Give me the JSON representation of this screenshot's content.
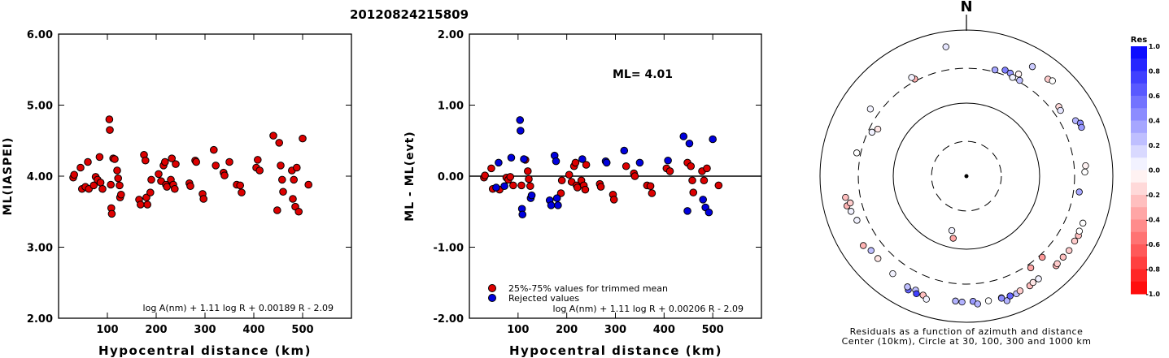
{
  "figure": {
    "title": "20120824215809"
  },
  "chart_data": [
    {
      "type": "scatter",
      "xlabel": "Hypocentral distance (km)",
      "ylabel": "ML(IASPEI)",
      "xlim": [
        0,
        600
      ],
      "ylim": [
        2.0,
        6.0
      ],
      "xticks": [
        "100",
        "200",
        "300",
        "400",
        "500"
      ],
      "yticks": [
        "2.00",
        "3.00",
        "4.00",
        "5.00",
        "6.00"
      ],
      "formula": "log A(nm) + 1.11 log R + 0.00189 R - 2.09",
      "series": [
        {
          "color": "#dd0000",
          "points": [
            [
              30,
              3.98
            ],
            [
              32,
              4.02
            ],
            [
              45,
              4.12
            ],
            [
              48,
              3.82
            ],
            [
              55,
              3.85
            ],
            [
              60,
              4.2
            ],
            [
              62,
              3.82
            ],
            [
              72,
              3.87
            ],
            [
              76,
              3.99
            ],
            [
              80,
              3.95
            ],
            [
              84,
              4.27
            ],
            [
              86,
              3.91
            ],
            [
              90,
              3.82
            ],
            [
              104,
              4.8
            ],
            [
              105,
              4.65
            ],
            [
              107,
              3.88
            ],
            [
              108,
              3.55
            ],
            [
              109,
              3.47
            ],
            [
              112,
              4.25
            ],
            [
              115,
              4.24
            ],
            [
              120,
              4.08
            ],
            [
              122,
              3.97
            ],
            [
              125,
              3.87
            ],
            [
              126,
              3.7
            ],
            [
              128,
              3.74
            ],
            [
              165,
              3.67
            ],
            [
              168,
              3.6
            ],
            [
              175,
              4.3
            ],
            [
              178,
              4.22
            ],
            [
              180,
              3.7
            ],
            [
              182,
              3.6
            ],
            [
              188,
              3.77
            ],
            [
              190,
              3.95
            ],
            [
              205,
              4.03
            ],
            [
              210,
              3.93
            ],
            [
              215,
              4.15
            ],
            [
              218,
              4.2
            ],
            [
              220,
              3.88
            ],
            [
              222,
              3.85
            ],
            [
              230,
              3.95
            ],
            [
              232,
              4.25
            ],
            [
              235,
              3.88
            ],
            [
              238,
              3.82
            ],
            [
              240,
              4.17
            ],
            [
              268,
              3.9
            ],
            [
              270,
              3.86
            ],
            [
              280,
              4.22
            ],
            [
              282,
              4.2
            ],
            [
              295,
              3.75
            ],
            [
              297,
              3.68
            ],
            [
              318,
              4.37
            ],
            [
              322,
              4.15
            ],
            [
              338,
              4.05
            ],
            [
              340,
              4.01
            ],
            [
              350,
              4.2
            ],
            [
              365,
              3.88
            ],
            [
              372,
              3.87
            ],
            [
              375,
              3.77
            ],
            [
              405,
              4.12
            ],
            [
              408,
              4.23
            ],
            [
              412,
              4.08
            ],
            [
              440,
              4.57
            ],
            [
              448,
              3.52
            ],
            [
              452,
              4.47
            ],
            [
              455,
              4.15
            ],
            [
              458,
              3.95
            ],
            [
              460,
              3.78
            ],
            [
              478,
              4.08
            ],
            [
              480,
              3.68
            ],
            [
              482,
              3.95
            ],
            [
              485,
              3.57
            ],
            [
              488,
              4.12
            ],
            [
              492,
              3.5
            ],
            [
              500,
              4.53
            ],
            [
              512,
              3.88
            ]
          ]
        }
      ]
    },
    {
      "type": "scatter",
      "xlabel": "Hypocentral distance (km)",
      "ylabel": "ML - ML(evt)",
      "xlim": [
        0,
        600
      ],
      "ylim": [
        -2.0,
        2.0
      ],
      "xticks": [
        "100",
        "200",
        "300",
        "400",
        "500"
      ],
      "yticks": [
        "-2.00",
        "-1.00",
        "0.00",
        "1.00",
        "2.00"
      ],
      "annotation": "ML= 4.01",
      "formula": "log A(nm) + 1.11 log R + 0.00206 R - 2.09",
      "series": [
        {
          "name": "25%-75% values for trimmed mean",
          "color": "#dd0000",
          "points": [
            [
              30,
              -0.02
            ],
            [
              32,
              0.01
            ],
            [
              45,
              0.11
            ],
            [
              48,
              -0.18
            ],
            [
              62,
              -0.19
            ],
            [
              76,
              -0.02
            ],
            [
              80,
              -0.05
            ],
            [
              84,
              -0.01
            ],
            [
              90,
              -0.13
            ],
            [
              107,
              -0.13
            ],
            [
              115,
              0.23
            ],
            [
              120,
              0.07
            ],
            [
              122,
              -0.04
            ],
            [
              125,
              -0.14
            ],
            [
              188,
              -0.24
            ],
            [
              190,
              -0.06
            ],
            [
              205,
              0.02
            ],
            [
              210,
              -0.08
            ],
            [
              215,
              0.14
            ],
            [
              218,
              0.19
            ],
            [
              220,
              -0.13
            ],
            [
              222,
              -0.16
            ],
            [
              230,
              -0.06
            ],
            [
              235,
              -0.13
            ],
            [
              238,
              -0.19
            ],
            [
              240,
              0.16
            ],
            [
              268,
              -0.11
            ],
            [
              270,
              -0.15
            ],
            [
              295,
              -0.26
            ],
            [
              297,
              -0.33
            ],
            [
              322,
              0.14
            ],
            [
              338,
              0.04
            ],
            [
              340,
              0.0
            ],
            [
              365,
              -0.13
            ],
            [
              372,
              -0.14
            ],
            [
              375,
              -0.24
            ],
            [
              405,
              0.11
            ],
            [
              412,
              0.07
            ],
            [
              448,
              0.19
            ],
            [
              455,
              0.14
            ],
            [
              458,
              -0.06
            ],
            [
              460,
              -0.23
            ],
            [
              478,
              0.07
            ],
            [
              482,
              -0.06
            ],
            [
              488,
              0.11
            ],
            [
              512,
              -0.13
            ]
          ]
        },
        {
          "name": "Rejected values",
          "color": "#0000dd",
          "points": [
            [
              55,
              -0.16
            ],
            [
              60,
              0.19
            ],
            [
              72,
              -0.14
            ],
            [
              86,
              0.26
            ],
            [
              104,
              0.79
            ],
            [
              105,
              0.64
            ],
            [
              108,
              -0.46
            ],
            [
              109,
              -0.54
            ],
            [
              112,
              0.24
            ],
            [
              126,
              -0.31
            ],
            [
              128,
              -0.27
            ],
            [
              165,
              -0.34
            ],
            [
              168,
              -0.41
            ],
            [
              175,
              0.29
            ],
            [
              178,
              0.21
            ],
            [
              180,
              -0.31
            ],
            [
              182,
              -0.41
            ],
            [
              232,
              0.24
            ],
            [
              280,
              0.21
            ],
            [
              282,
              0.19
            ],
            [
              318,
              0.36
            ],
            [
              350,
              0.19
            ],
            [
              408,
              0.22
            ],
            [
              440,
              0.56
            ],
            [
              452,
              0.46
            ],
            [
              448,
              -0.49
            ],
            [
              480,
              -0.33
            ],
            [
              485,
              -0.44
            ],
            [
              492,
              -0.51
            ],
            [
              500,
              0.52
            ]
          ]
        }
      ],
      "legend_position": "bottom-left"
    },
    {
      "type": "polar-scatter",
      "north_label": "N",
      "caption": [
        "Residuals as a function of azimuth and distance",
        "Center (10km), Circle at 30, 100, 300 and 1000 km"
      ],
      "rings_km": [
        30,
        100,
        300,
        1000
      ],
      "colorbar": {
        "title": "Res",
        "ticks": [
          "1.0",
          "0.8",
          "0.6",
          "0.4",
          "0.2",
          "0.0",
          "-0.2",
          "-0.4",
          "-0.6",
          "-0.8",
          "-1.0"
        ],
        "range": [
          -1.0,
          1.0
        ]
      },
      "stations": [
        {
          "az": -9,
          "dist": 620,
          "res": 0.1
        },
        {
          "az": 31,
          "dist": 560,
          "res": 0.2
        },
        {
          "az": 15,
          "dist": 320,
          "res": 0.35
        },
        {
          "az": 20,
          "dist": 350,
          "res": 0.5
        },
        {
          "az": 23,
          "dist": 340,
          "res": 0.4
        },
        {
          "az": 27,
          "dist": 370,
          "res": -0.05
        },
        {
          "az": 25,
          "dist": 310,
          "res": 0.05
        },
        {
          "az": 29,
          "dist": 315,
          "res": 0.25
        },
        {
          "az": 40,
          "dist": 540,
          "res": -0.2
        },
        {
          "az": 42,
          "dist": 570,
          "res": 0.0
        },
        {
          "az": 53,
          "dist": 380,
          "res": -0.15
        },
        {
          "az": 55,
          "dist": 370,
          "res": 0.1
        },
        {
          "az": 63,
          "dist": 470,
          "res": 0.3
        },
        {
          "az": 65,
          "dist": 520,
          "res": 0.45
        },
        {
          "az": 67,
          "dist": 510,
          "res": 0.4
        },
        {
          "az": 85,
          "dist": 430,
          "res": -0.05
        },
        {
          "az": 88,
          "dist": 415,
          "res": 0.0
        },
        {
          "az": 98,
          "dist": 360,
          "res": 0.35
        },
        {
          "az": -28,
          "dist": 320,
          "res": -0.3
        },
        {
          "az": -29,
          "dist": 350,
          "res": 0.05
        },
        {
          "az": -55,
          "dist": 400,
          "res": 0.05
        },
        {
          "az": -62,
          "dist": 235,
          "res": -0.1
        },
        {
          "az": -65,
          "dist": 265,
          "res": 0.05
        },
        {
          "az": -78,
          "dist": 340,
          "res": 0.0
        },
        {
          "az": -100,
          "dist": 475,
          "res": -0.25
        },
        {
          "az": -104,
          "dist": 480,
          "res": -0.3
        },
        {
          "az": -103,
          "dist": 425,
          "res": -0.2
        },
        {
          "az": -107,
          "dist": 445,
          "res": 0.05
        },
        {
          "az": -112,
          "dist": 410,
          "res": 0.05
        },
        {
          "az": -165,
          "dist": 59,
          "res": 0.05
        },
        {
          "az": -168,
          "dist": 74,
          "res": -0.35
        },
        {
          "az": -124,
          "dist": 500,
          "res": -0.3
        },
        {
          "az": -128,
          "dist": 450,
          "res": 0.25
        },
        {
          "az": -133,
          "dist": 450,
          "res": -0.1
        },
        {
          "az": -143,
          "dist": 470,
          "res": 0.05
        },
        {
          "az": -153,
          "dist": 560,
          "res": 0.6
        },
        {
          "az": -152,
          "dist": 520,
          "res": 0.25
        },
        {
          "az": -156,
          "dist": 510,
          "res": 0.25
        },
        {
          "az": -157,
          "dist": 560,
          "res": 0.75
        },
        {
          "az": -160,
          "dist": 540,
          "res": -0.25
        },
        {
          "az": -162,
          "dist": 590,
          "res": 0.05
        },
        {
          "az": -175,
          "dist": 520,
          "res": 0.3
        },
        {
          "az": -178,
          "dist": 530,
          "res": 0.3
        },
        {
          "az": 177,
          "dist": 520,
          "res": 0.4
        },
        {
          "az": 175,
          "dist": 570,
          "res": 0.3
        },
        {
          "az": 170,
          "dist": 540,
          "res": 0.0
        },
        {
          "az": 164,
          "dist": 540,
          "res": 0.05
        },
        {
          "az": 162,
          "dist": 620,
          "res": 0.3
        },
        {
          "az": 157,
          "dist": 560,
          "res": 0.25
        },
        {
          "az": 155,
          "dist": 540,
          "res": -0.2
        },
        {
          "az": 150,
          "dist": 540,
          "res": -0.25
        },
        {
          "az": 145,
          "dist": 520,
          "res": 0.05
        },
        {
          "az": 148,
          "dist": 520,
          "res": -0.1
        },
        {
          "az": 135,
          "dist": 540,
          "res": -0.3
        },
        {
          "az": 134,
          "dist": 530,
          "res": -0.2
        },
        {
          "az": 130,
          "dist": 530,
          "res": -0.25
        },
        {
          "az": 126,
          "dist": 540,
          "res": -0.2
        },
        {
          "az": 121,
          "dist": 530,
          "res": -0.2
        },
        {
          "az": 118,
          "dist": 540,
          "res": -0.25
        },
        {
          "az": 116,
          "dist": 520,
          "res": 0.0
        },
        {
          "az": 112,
          "dist": 520,
          "res": 0.0
        },
        {
          "az": 137,
          "dist": 330,
          "res": -0.4
        },
        {
          "az": 145,
          "dist": 340,
          "res": -0.35
        },
        {
          "az": 164,
          "dist": 548,
          "res": 0.45
        },
        {
          "az": 160,
          "dist": 555,
          "res": 0.6
        }
      ]
    }
  ]
}
